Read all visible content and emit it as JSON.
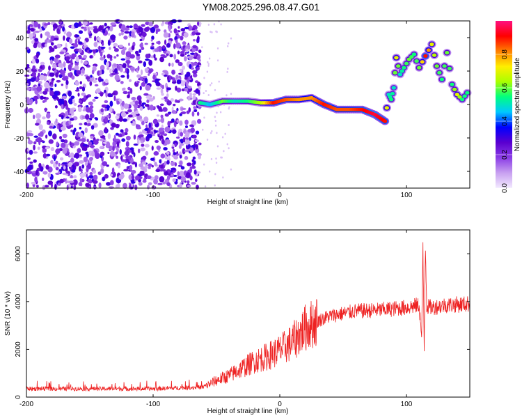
{
  "figure": {
    "title": "YM08.2025.296.08.47.G01"
  },
  "chart_data": [
    {
      "type": "heatmap",
      "xlabel": "Height of straight line (km)",
      "ylabel": "Frequency (Hz)",
      "xlim": [
        -200,
        150
      ],
      "ylim": [
        -50,
        50
      ],
      "xticks": [
        "-200",
        "-100",
        "0",
        "100"
      ],
      "yticks": [
        "-40",
        "-20",
        "0",
        "20",
        "40"
      ],
      "noise_region_x": [
        -200,
        -63
      ],
      "colorbar": {
        "label": "Normalized spectral amplitude",
        "range": [
          0,
          1
        ],
        "ticks": [
          "0.0",
          "0.2",
          "0.4",
          "0.6",
          "0.8"
        ],
        "colors": [
          "#f3eaff",
          "#c8a0f0",
          "#8a3ce6",
          "#5a00d0",
          "#0000ff",
          "#00c8ff",
          "#00ff80",
          "#aaff00",
          "#ffee00",
          "#ff8000",
          "#ff0000",
          "#ff1080"
        ]
      },
      "ridge": {
        "x": [
          -63,
          -55,
          -45,
          -35,
          -25,
          -15,
          -5,
          5,
          15,
          25,
          35,
          45,
          55,
          65,
          75,
          83,
          86,
          88,
          90,
          92,
          95,
          98,
          102,
          106,
          110,
          115,
          120,
          124,
          128,
          132,
          136,
          140,
          144,
          148
        ],
        "freq": [
          1,
          0,
          2,
          2,
          2,
          1,
          1,
          3,
          3,
          4,
          0,
          -3,
          -3,
          -3,
          -6,
          -10,
          6,
          3,
          10,
          28,
          18,
          22,
          27,
          30,
          22,
          29,
          36,
          23,
          15,
          31,
          12,
          6,
          3,
          7
        ],
        "amplitude": [
          0.55,
          0.45,
          0.6,
          0.5,
          0.55,
          0.65,
          0.9,
          0.85,
          0.8,
          0.8,
          0.9,
          0.85,
          0.85,
          0.9,
          0.95,
          0.9,
          0.5,
          0.55,
          0.5,
          0.7,
          0.5,
          0.55,
          0.6,
          0.55,
          0.6,
          0.9,
          0.7,
          0.6,
          0.55,
          0.6,
          0.55,
          0.7,
          0.55,
          0.55
        ]
      }
    },
    {
      "type": "line",
      "xlabel": "Height of straight line (km)",
      "ylabel": "SNR (10 * v/v)",
      "xlim": [
        -200,
        150
      ],
      "ylim": [
        0,
        7000
      ],
      "xticks": [
        "-200",
        "-100",
        "0",
        "100"
      ],
      "yticks": [
        "0",
        "2000",
        "4000",
        "6000"
      ],
      "line_color": "#ee2222",
      "series": [
        {
          "x": [
            -200,
            -150,
            -100,
            -60,
            -50,
            -40,
            -30,
            -20,
            -10,
            0,
            10,
            20,
            30,
            40,
            50,
            60,
            80,
            100,
            110,
            112,
            113,
            114,
            115,
            116,
            120,
            130,
            150
          ],
          "y": [
            350,
            350,
            350,
            420,
            700,
            900,
            1200,
            1500,
            1700,
            1950,
            2300,
            2900,
            3200,
            3400,
            3500,
            3600,
            3650,
            3750,
            3850,
            2500,
            6200,
            2000,
            6500,
            3800,
            3750,
            3850,
            3900
          ]
        }
      ]
    }
  ]
}
